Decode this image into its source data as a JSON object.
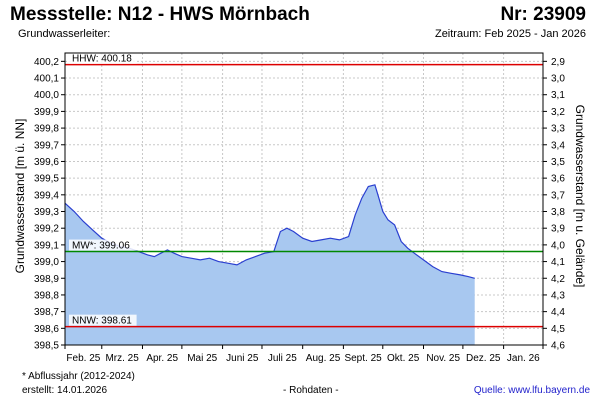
{
  "header": {
    "title": "Messstelle: N12 - HWS Mörnbach",
    "number": "Nr: 23909",
    "aquifer": "Grundwasserleiter:",
    "period": "Zeitraum: Feb 2025 - Jan 2026"
  },
  "footer": {
    "note": "* Abflussjahr (2012-2024)",
    "created": "erstellt:  14.01.2026",
    "raw": "- Rohdaten -",
    "source": "Quelle:  www.lfu.bayern.de"
  },
  "colors": {
    "area_fill": "#a8c8f0",
    "line": "#2a3fd0",
    "hhw": "#dd0000",
    "mw": "#008800",
    "nnw": "#dd0000",
    "grid": "#c8c8c8"
  },
  "chart_data": {
    "type": "area",
    "ylabel": "Grundwasserstand [m ü. NN]",
    "y2label": "Grundwasserstand [m u. Gelände]",
    "ylim": [
      398.5,
      400.25
    ],
    "y_ticks": [
      "398,5",
      "398,6",
      "398,7",
      "398,8",
      "398,9",
      "399,0",
      "399,1",
      "399,2",
      "399,3",
      "399,4",
      "399,5",
      "399,6",
      "399,7",
      "399,8",
      "399,9",
      "400,0",
      "400,1",
      "400,2"
    ],
    "y2_ticks": [
      "4,6",
      "4,5",
      "4,4",
      "4,3",
      "4,2",
      "4,1",
      "4,0",
      "3,9",
      "3,8",
      "3,7",
      "3,6",
      "3,5",
      "3,4",
      "3,3",
      "3,2",
      "3,1",
      "3,0",
      "2,9"
    ],
    "x_labels": [
      "Feb. 25",
      "Mrz. 25",
      "Apr. 25",
      "Mai 25",
      "Juni 25",
      "Juli 25",
      "Aug. 25",
      "Sept. 25",
      "Okt. 25",
      "Nov. 25",
      "Dez. 25",
      "Jan. 26"
    ],
    "grid": true,
    "reference_lines": [
      {
        "label": "HHW: 400.18",
        "value": 400.18,
        "color": "#dd0000"
      },
      {
        "label": "MW*: 399.06",
        "value": 399.06,
        "color": "#008800"
      },
      {
        "label": "NNW: 398.61",
        "value": 398.61,
        "color": "#dd0000"
      }
    ],
    "series": [
      {
        "x": [
          "2025-02-01",
          "2025-02-08",
          "2025-02-15",
          "2025-02-22",
          "2025-03-01",
          "2025-03-08",
          "2025-03-15",
          "2025-03-22",
          "2025-03-29",
          "2025-04-05",
          "2025-04-10",
          "2025-04-15",
          "2025-04-20",
          "2025-04-25",
          "2025-05-01",
          "2025-05-08",
          "2025-05-15",
          "2025-05-22",
          "2025-05-29",
          "2025-06-05",
          "2025-06-12",
          "2025-06-19",
          "2025-06-26",
          "2025-07-03",
          "2025-07-10",
          "2025-07-15",
          "2025-07-20",
          "2025-07-25",
          "2025-08-01",
          "2025-08-08",
          "2025-08-15",
          "2025-08-22",
          "2025-08-29",
          "2025-09-05",
          "2025-09-10",
          "2025-09-15",
          "2025-09-20",
          "2025-09-25",
          "2025-09-28",
          "2025-10-01",
          "2025-10-05",
          "2025-10-10",
          "2025-10-15",
          "2025-10-20",
          "2025-10-25",
          "2025-11-01",
          "2025-11-08",
          "2025-11-15",
          "2025-11-22",
          "2025-11-29",
          "2025-12-05",
          "2025-12-10"
        ],
        "values": [
          399.35,
          399.3,
          399.24,
          399.19,
          399.14,
          399.11,
          399.09,
          399.08,
          399.06,
          399.04,
          399.03,
          399.05,
          399.07,
          399.05,
          399.03,
          399.02,
          399.01,
          399.02,
          399.0,
          398.99,
          398.98,
          399.01,
          399.03,
          399.05,
          399.06,
          399.18,
          399.2,
          399.18,
          399.14,
          399.12,
          399.13,
          399.14,
          399.13,
          399.15,
          399.28,
          399.38,
          399.45,
          399.46,
          399.38,
          399.3,
          399.25,
          399.22,
          399.12,
          399.08,
          399.05,
          399.01,
          398.97,
          398.94,
          398.93,
          398.92,
          398.91,
          398.9
        ]
      }
    ]
  }
}
